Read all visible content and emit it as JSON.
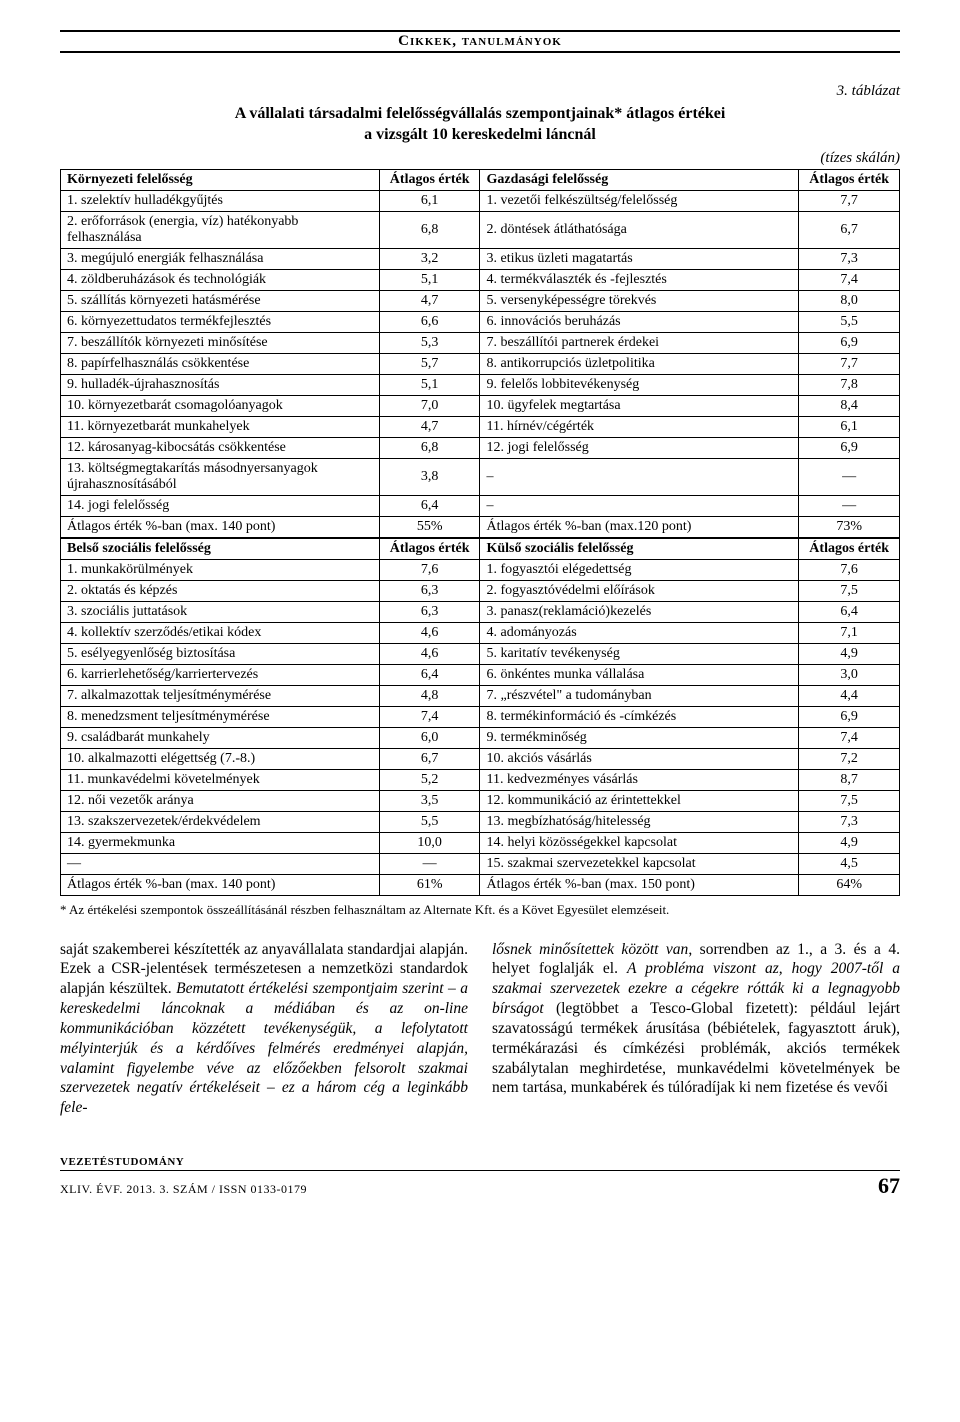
{
  "header": {
    "section": "Cikkek, tanulmányok"
  },
  "table": {
    "label": "3. táblázat",
    "title_line1": "A vállalati társadalmi felelősségvállalás szempontjainak* átlagos értékei",
    "title_line2": "a vizsgált 10 kereskedelmi láncnál",
    "scale": "(tízes skálán)",
    "headers1": {
      "c1": "Környezeti felelősség",
      "c2": "Átlagos érték",
      "c3": "Gazdasági felelősség",
      "c4": "Átlagos érték"
    },
    "section1_rows": [
      {
        "a": " 1. szelektív hulladékgyűjtés",
        "av": "6,1",
        "b": " 1. vezetői felkészültség/felelősség",
        "bv": "7,7"
      },
      {
        "a": " 2. erőforrások (energia, víz) hatékonyabb felhasználása",
        "av": "6,8",
        "b": " 2. döntések átláthatósága",
        "bv": "6,7"
      },
      {
        "a": " 3. megújuló energiák felhasználása",
        "av": "3,2",
        "b": " 3. etikus üzleti magatartás",
        "bv": "7,3"
      },
      {
        "a": " 4. zöldberuházások és technológiák",
        "av": "5,1",
        "b": " 4. termékválaszték és -fejlesztés",
        "bv": "7,4"
      },
      {
        "a": " 5. szállítás környezeti hatásmérése",
        "av": "4,7",
        "b": " 5. versenyképességre törekvés",
        "bv": "8,0"
      },
      {
        "a": " 6. környezettudatos termékfejlesztés",
        "av": "6,6",
        "b": " 6. innovációs beruházás",
        "bv": "5,5"
      },
      {
        "a": " 7. beszállítók környezeti minősítése",
        "av": "5,3",
        "b": " 7. beszállítói partnerek érdekei",
        "bv": "6,9"
      },
      {
        "a": " 8. papírfelhasználás csökkentése",
        "av": "5,7",
        "b": " 8. antikorrupciós üzletpolitika",
        "bv": "7,7"
      },
      {
        "a": " 9. hulladék-újrahasznosítás",
        "av": "5,1",
        "b": " 9. felelős lobbitevékenység",
        "bv": "7,8"
      },
      {
        "a": "10. környezetbarát csomagolóanyagok",
        "av": "7,0",
        "b": "10. ügyfelek megtartása",
        "bv": "8,4"
      },
      {
        "a": "11. környezetbarát munkahelyek",
        "av": "4,7",
        "b": "11. hírnév/cégérték",
        "bv": "6,1"
      },
      {
        "a": "12. károsanyag-kibocsátás csökkentése",
        "av": "6,8",
        "b": "12. jogi felelősség",
        "bv": "6,9"
      },
      {
        "a": "13. költségmegtakarítás másodnyersanyagok újrahasznosításából",
        "av": "3,8",
        "b": " –",
        "bv": "—"
      },
      {
        "a": "14. jogi felelősség",
        "av": "6,4",
        "b": " –",
        "bv": "—"
      }
    ],
    "section1_sum": {
      "a": "Átlagos érték %-ban (max. 140 pont)",
      "av": "55%",
      "b": "Átlagos érték %-ban (max.120 pont)",
      "bv": "73%"
    },
    "headers2": {
      "c1": "Belső szociális felelősség",
      "c2": "Átlagos érték",
      "c3": "Külső szociális felelősség",
      "c4": "Átlagos érték"
    },
    "section2_rows": [
      {
        "a": " 1. munkakörülmények",
        "av": "7,6",
        "b": " 1. fogyasztói elégedettség",
        "bv": "7,6"
      },
      {
        "a": " 2. oktatás és képzés",
        "av": "6,3",
        "b": " 2. fogyasztóvédelmi előírások",
        "bv": "7,5"
      },
      {
        "a": " 3. szociális juttatások",
        "av": "6,3",
        "b": " 3. panasz(reklamáció)kezelés",
        "bv": "6,4"
      },
      {
        "a": " 4. kollektív szerződés/etikai kódex",
        "av": "4,6",
        "b": " 4. adományozás",
        "bv": "7,1"
      },
      {
        "a": " 5. esélyegyenlőség biztosítása",
        "av": "4,6",
        "b": " 5. karitatív tevékenység",
        "bv": "4,9"
      },
      {
        "a": " 6. karrierlehetőség/karriertervezés",
        "av": "6,4",
        "b": " 6. önkéntes munka vállalása",
        "bv": "3,0"
      },
      {
        "a": " 7. alkalmazottak teljesítménymérése",
        "av": "4,8",
        "b": " 7. „részvétel\" a tudományban",
        "bv": "4,4"
      },
      {
        "a": " 8. menedzsment teljesítménymérése",
        "av": "7,4",
        "b": " 8. termékinformáció és -címkézés",
        "bv": "6,9"
      },
      {
        "a": " 9. családbarát munkahely",
        "av": "6,0",
        "b": " 9. termékminőség",
        "bv": "7,4"
      },
      {
        "a": "10. alkalmazotti elégettség (7.-8.)",
        "av": "6,7",
        "b": "10. akciós vásárlás",
        "bv": "7,2"
      },
      {
        "a": "11. munkavédelmi követelmények",
        "av": "5,2",
        "b": "11. kedvezményes vásárlás",
        "bv": "8,7"
      },
      {
        "a": "12. női vezetők aránya",
        "av": "3,5",
        "b": "12. kommunikáció az érintettekkel",
        "bv": "7,5"
      },
      {
        "a": "13. szakszervezetek/érdekvédelem",
        "av": "5,5",
        "b": "13. megbízhatóság/hitelesség",
        "bv": "7,3"
      },
      {
        "a": "14. gyermekmunka",
        "av": "10,0",
        "b": "14. helyi közösségekkel kapcsolat",
        "bv": "4,9"
      },
      {
        "a": " —",
        "av": "—",
        "b": "15. szakmai szervezetekkel kapcsolat",
        "bv": "4,5"
      }
    ],
    "section2_sum": {
      "a": "Átlagos érték %-ban (max. 140 pont)",
      "av": "61%",
      "b": "Átlagos érték %-ban (max. 150 pont)",
      "bv": "64%"
    }
  },
  "footnote": "* Az értékelési szempontok összeállításánál részben felhasználtam az Alternate Kft. és a Követ Egyesület elemzéseit.",
  "body": {
    "left": "saját szakemberei készítették az anyavállalata standardjai alapján. Ezek a CSR-jelentések természetesen a nemzetközi standardok alapján készültek. Bemutatott értékelési szempontjaim szerint – a kereskedelmi láncoknak a médiában és az on-line kommunikációban közzétett tevékenységük, a lefolytatott mélyinterjúk és a kérdőíves felmérés eredményei alapján, valamint figyelembe véve az előzőekben felsorolt szakmai szervezetek negatív értékeléseit – ez a három cég a leginkább fele-",
    "right": "lősnek minősítettek között van, sorrendben az 1., a 3. és a 4. helyet foglalják el. A probléma viszont az, hogy 2007-től a szakmai szervezetek ezekre a cégekre rótták ki a legnagyobb bírságot (legtöbbet a Tesco-Global fizetett): például lejárt szavatosságú termékek árusítása (bébiételek, fagyasztott áruk), termékárazási és címkézési problémák, akciós termékek szabálytalan meghirdetése, munkavédelmi követelmények be nem tartása, munkabérek és túlóradíjak ki nem fizetése és vevői"
  },
  "footer": {
    "brand": "vezetéstudomány",
    "issue": "XLIV. ÉVF. 2013. 3. SZÁM / ISSN 0133-0179",
    "page": "67"
  },
  "style": {
    "background_color": "#ffffff",
    "text_color": "#000000",
    "border_color": "#000000",
    "body_fontsize": 15.5,
    "table_fontsize": 14
  }
}
